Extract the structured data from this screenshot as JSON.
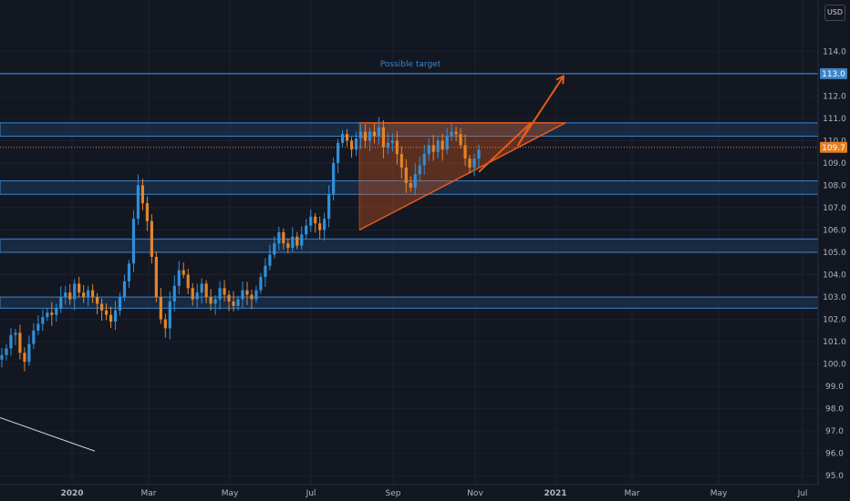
{
  "currency_label": "USD",
  "colors": {
    "background": "#131722",
    "grid": "#1c2030",
    "up": "#2f8fd8",
    "down": "#e3852a",
    "zone_fill": "#1c3b5c",
    "zone_stroke": "#3d84c7",
    "triangle": "#e35b1c",
    "price_line": "#e67e22",
    "target_line": "#3d84c7",
    "text": "#b2b5be"
  },
  "chart_data": {
    "type": "candlestick",
    "title": "",
    "ylim": [
      94.6,
      116.3
    ],
    "y_ticks": [
      95.0,
      96.0,
      97.0,
      98.0,
      99.0,
      100.0,
      101.0,
      102.0,
      103.0,
      104.0,
      105.0,
      106.0,
      107.0,
      108.0,
      109.0,
      110.0,
      111.0,
      112.0,
      113.0,
      114.0
    ],
    "x_ticks": [
      "2020",
      "Mar",
      "May",
      "Jul",
      "Sep",
      "Nov",
      "2021",
      "Mar",
      "May",
      "Jul"
    ],
    "x_ticks_bold": [
      "2020",
      "2021"
    ],
    "current_price": 109.7,
    "target_price": 113.0,
    "target_label": "Possible target",
    "zones": [
      {
        "low": 110.2,
        "high": 110.8
      },
      {
        "low": 107.6,
        "high": 108.2
      },
      {
        "low": 105.0,
        "high": 105.6
      },
      {
        "low": 102.5,
        "high": 103.0
      }
    ],
    "triangle_pattern": {
      "apex_price": 110.8,
      "upper_price": 110.8,
      "lower_start_price": 106.0
    },
    "projection_path_prices": [
      108.6,
      110.8,
      109.8,
      112.9
    ],
    "trendline_prices": [
      97.6,
      96.1
    ],
    "price_path": [
      [
        100.4,
        100.7,
        101.3,
        101.4,
        100.5,
        100.1,
        100.9,
        101.5,
        101.8,
        102.1,
        102.3,
        102.2,
        102.5,
        103.0,
        103.2,
        102.9,
        103.6,
        103.2,
        103.0,
        103.3
      ],
      [
        103.0,
        102.7,
        102.4,
        102.2,
        101.9,
        102.4,
        103.0,
        103.7,
        104.5,
        106.5,
        108.0,
        107.2,
        106.4,
        104.8,
        103.0,
        102.0,
        101.6,
        102.8,
        103.5,
        104.2
      ],
      [
        104.0,
        103.4,
        102.9,
        103.2,
        103.6,
        103.0,
        102.7,
        102.9,
        103.4,
        103.1,
        102.8,
        102.6,
        102.9,
        103.3,
        103.1,
        102.9,
        103.3,
        103.9,
        104.4,
        104.9
      ],
      [
        105.4,
        105.9,
        105.4,
        105.2,
        105.7,
        105.3,
        105.8,
        106.2,
        106.6,
        106.3,
        106.0,
        106.5,
        107.6,
        109.0,
        109.9,
        110.3,
        110.0,
        109.6,
        110.1,
        110.4
      ],
      [
        110.0,
        110.4,
        110.2,
        110.6,
        109.7,
        109.9,
        110.0,
        109.4,
        108.8,
        108.1,
        107.9,
        108.5,
        108.9,
        109.4,
        109.8,
        109.5,
        110.0,
        109.6,
        110.2,
        110.4
      ],
      [
        110.3,
        109.8,
        109.2,
        108.8,
        109.2,
        109.6
      ]
    ]
  }
}
